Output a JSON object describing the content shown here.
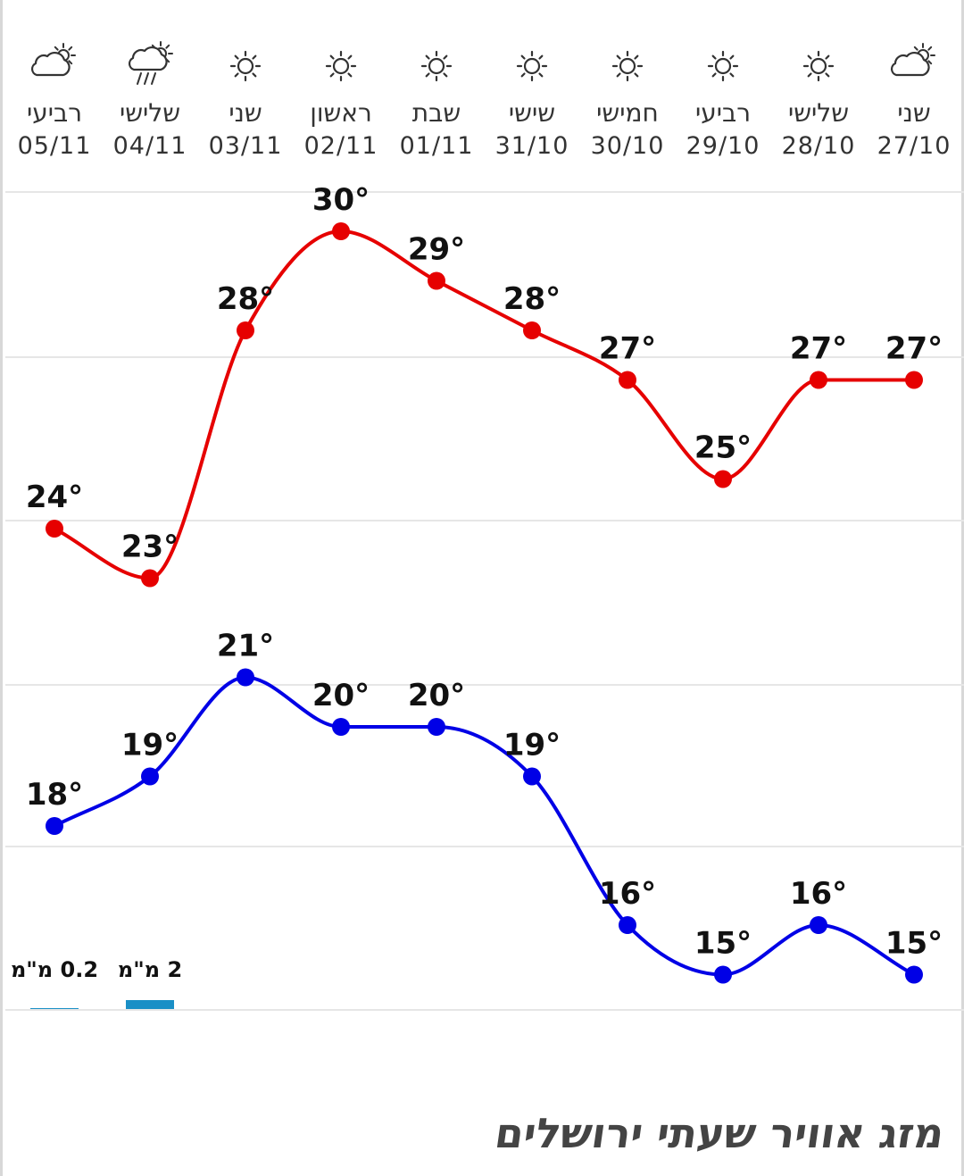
{
  "page": {
    "title": "מזג אוויר שעתי ירושלים"
  },
  "colors": {
    "max_line": "#e60000",
    "min_line": "#0000e6",
    "rain_bar": "#1a8fc6",
    "grid": "#e6e6e6",
    "icon": "#333333"
  },
  "chart_data": {
    "type": "line",
    "x": [
      "27/10",
      "28/10",
      "29/10",
      "30/10",
      "31/10",
      "01/11",
      "02/11",
      "03/11",
      "04/11",
      "05/11"
    ],
    "day_names": [
      "שני",
      "שלישי",
      "רביעי",
      "חמישי",
      "שישי",
      "שבת",
      "ראשון",
      "שני",
      "שלישי",
      "רביעי"
    ],
    "icons": [
      "partly-cloudy-icon",
      "sun-icon",
      "sun-icon",
      "sun-icon",
      "sun-icon",
      "sun-icon",
      "sun-icon",
      "sun-icon",
      "rain-cloud-icon",
      "partly-cloudy-icon"
    ],
    "series": [
      {
        "key": "max",
        "values": [
          27,
          27,
          25,
          27,
          28,
          29,
          30,
          28,
          23,
          24
        ]
      },
      {
        "key": "min",
        "values": [
          15,
          16,
          15,
          16,
          19,
          20,
          20,
          21,
          19,
          18
        ]
      }
    ],
    "value_suffix": "°",
    "x_direction": "right-to-left",
    "rain_labels": [
      {
        "date": "04/11",
        "text": "2 מ\"מ",
        "mm": 2
      },
      {
        "date": "05/11",
        "text": "0.2 מ\"מ",
        "mm": 0.2
      }
    ],
    "grid": true
  }
}
